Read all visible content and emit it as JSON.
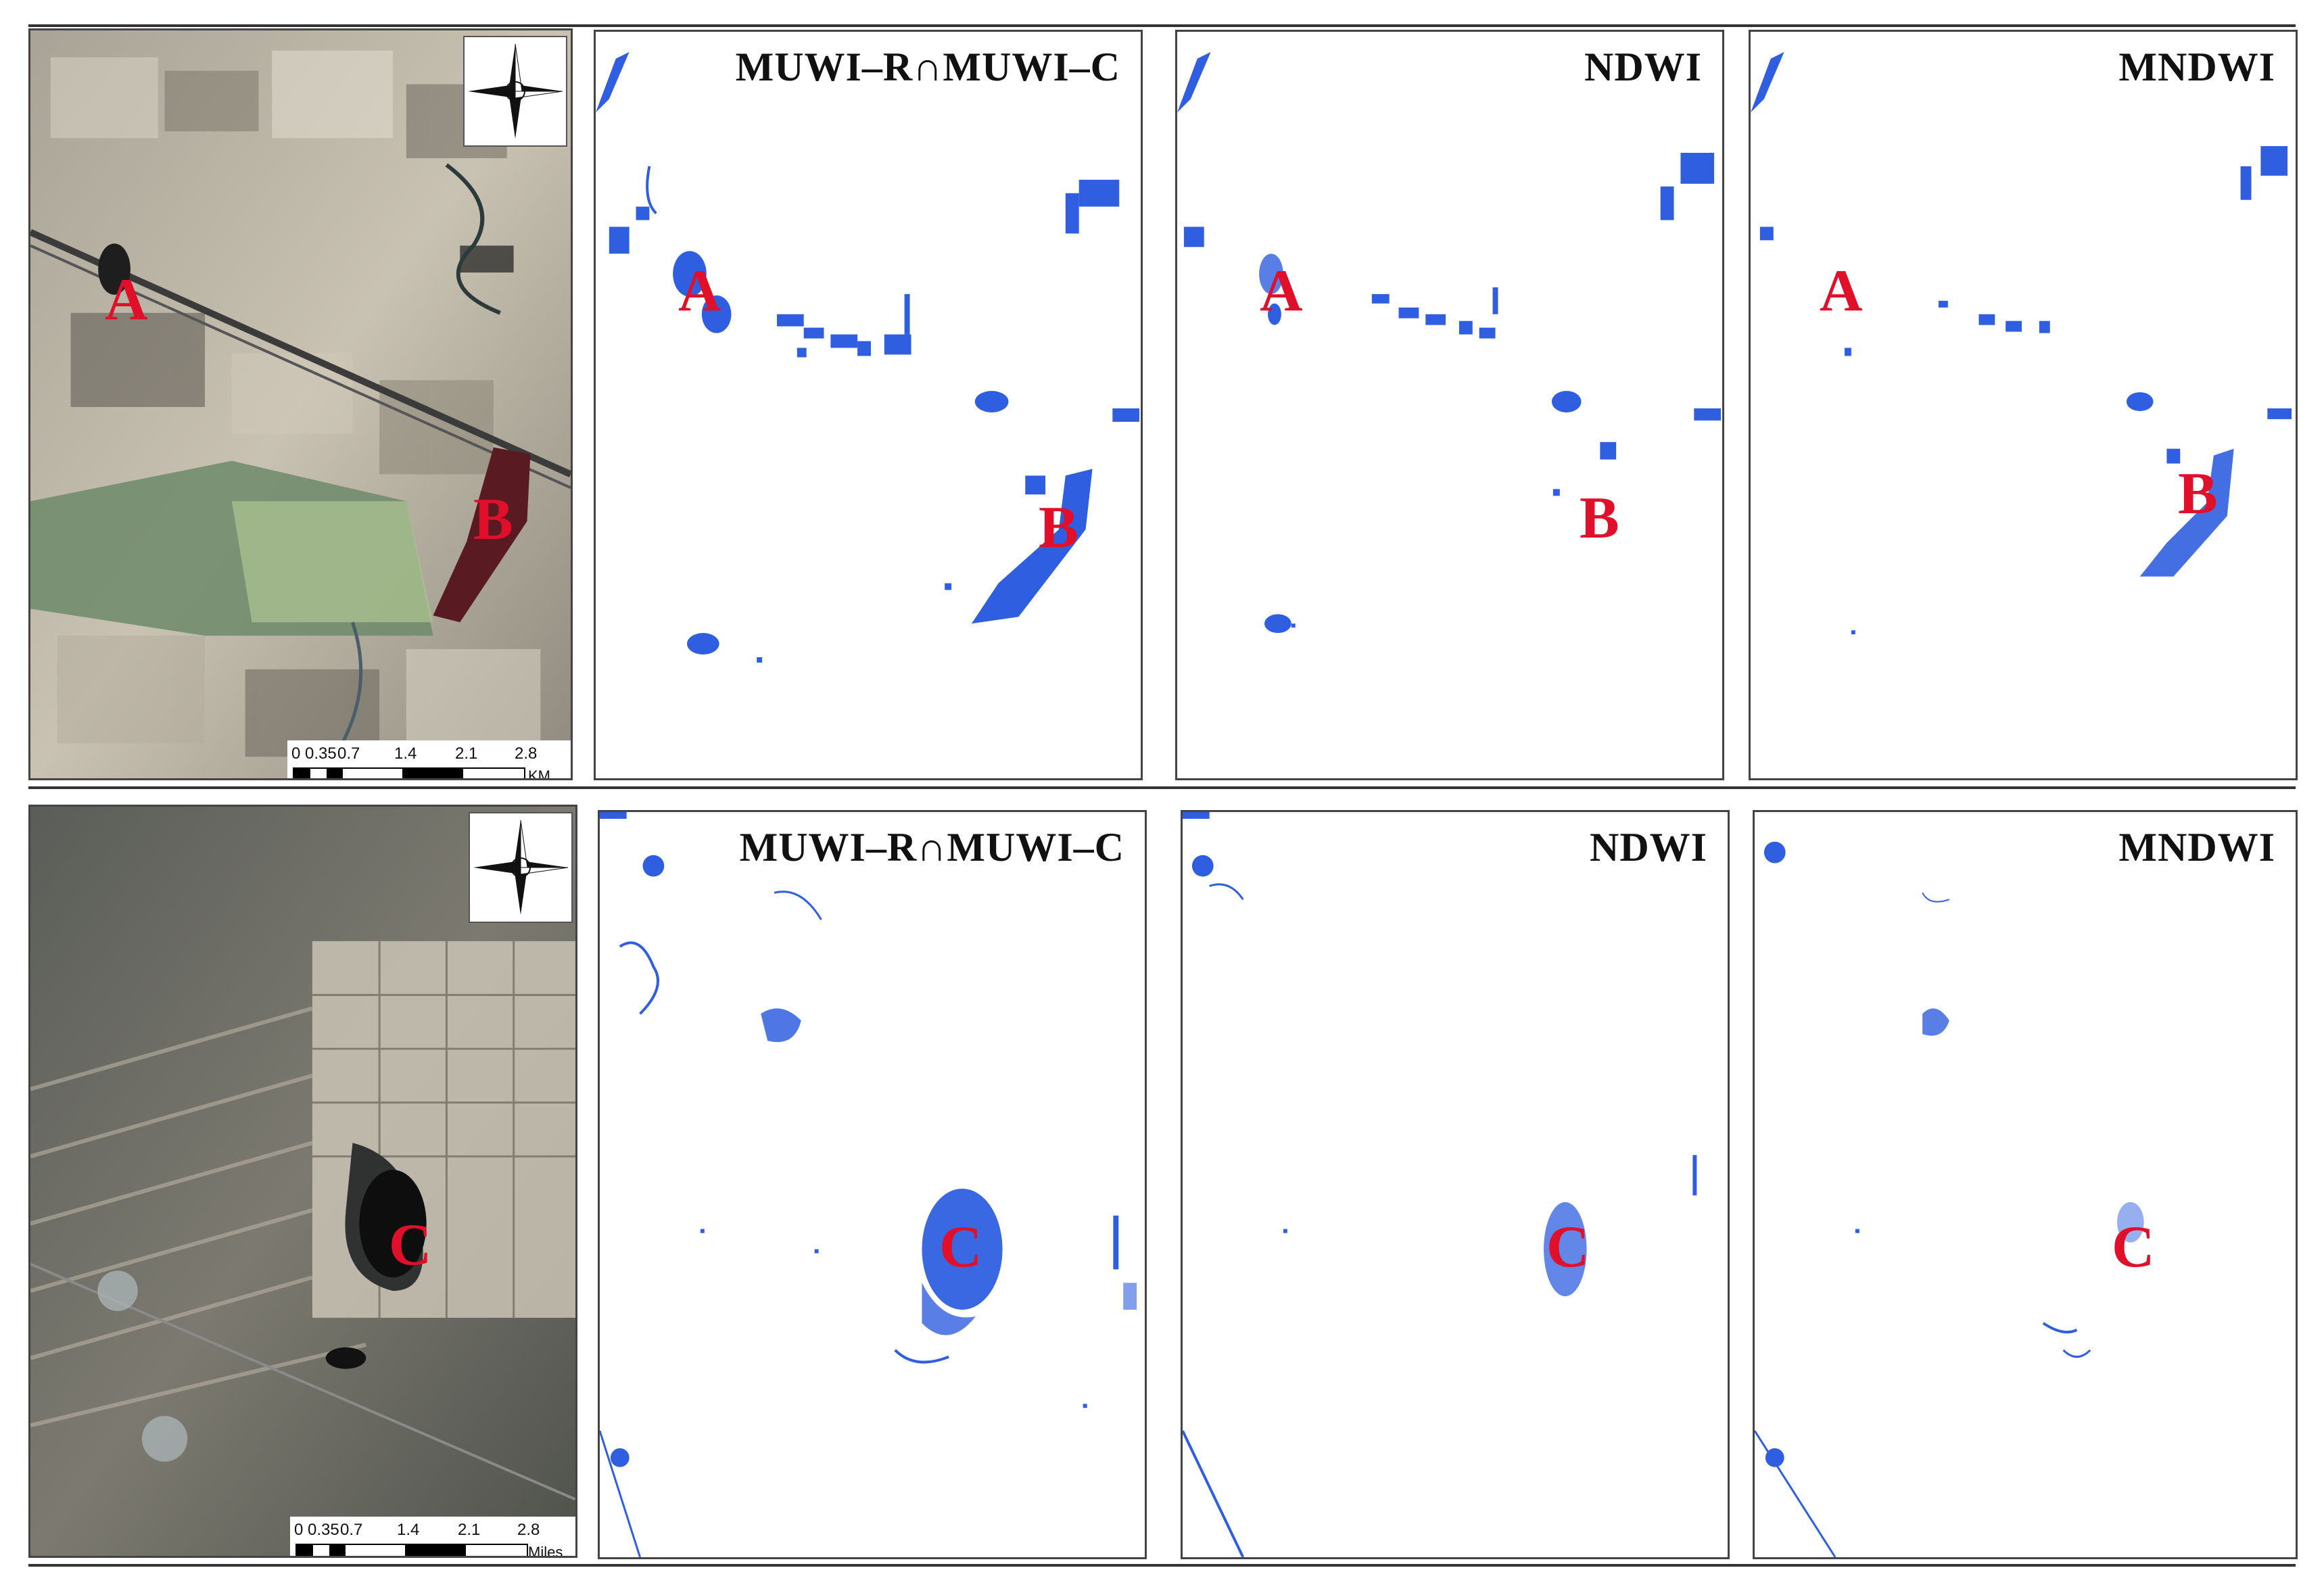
{
  "colors": {
    "water": "#2f5fe0",
    "label": "#e0102a",
    "title": "#111111"
  },
  "rows": [
    {
      "satellite_marks": [
        "A",
        "B"
      ],
      "scale": {
        "ticks": [
          "0",
          "0.35",
          "0.7",
          "1.4",
          "2.1",
          "2.8"
        ],
        "unit": "KM"
      },
      "compass_icon": "north-arrow-compass-icon",
      "panels": [
        {
          "title": "MUWI–R∩MUWI–C",
          "marks": [
            "A",
            "B"
          ]
        },
        {
          "title": "NDWI",
          "marks": [
            "A",
            "B"
          ]
        },
        {
          "title": "MNDWI",
          "marks": [
            "A",
            "B"
          ]
        }
      ]
    },
    {
      "satellite_marks": [
        "C"
      ],
      "scale": {
        "ticks": [
          "0",
          "0.35",
          "0.7",
          "1.4",
          "2.1",
          "2.8"
        ],
        "unit": "Miles"
      },
      "compass_icon": "north-arrow-compass-icon",
      "panels": [
        {
          "title": "MUWI–R∩MUWI–C",
          "marks": [
            "C"
          ]
        },
        {
          "title": "NDWI",
          "marks": [
            "C"
          ]
        },
        {
          "title": "MNDWI",
          "marks": [
            "C"
          ]
        }
      ]
    }
  ]
}
